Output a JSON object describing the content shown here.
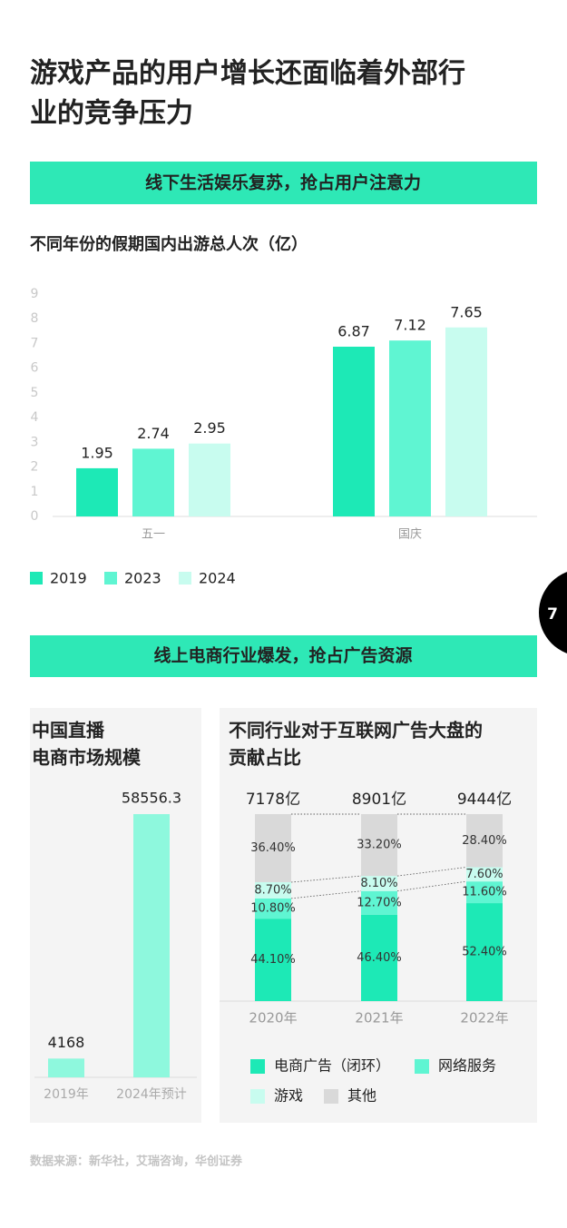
{
  "title": [
    "游戏产品的用户增长还面临着外部行",
    "业的竞争压力"
  ],
  "banners": [
    "线下生活娱乐复苏，抢占用户注意力",
    "线上电商行业爆发，抢占广告资源"
  ],
  "page_number": "7",
  "source": "数据来源：新华社，艾瑞咨询，华创证券",
  "chart_data": [
    {
      "type": "bar",
      "title": "不同年份的假期国内出游总人次（亿）",
      "categories": [
        "五一",
        "国庆"
      ],
      "series": [
        {
          "name": "2019",
          "color": "#1de9b6",
          "values": [
            1.95,
            6.87
          ]
        },
        {
          "name": "2023",
          "color": "#5ff5d2",
          "values": [
            2.74,
            7.12
          ]
        },
        {
          "name": "2024",
          "color": "#c8fcef",
          "values": [
            2.95,
            7.65
          ]
        }
      ],
      "ylim": [
        0,
        9
      ],
      "yticks": [
        0,
        1,
        2,
        3,
        4,
        5,
        6,
        7,
        8,
        9
      ],
      "legend": "bottom-left"
    },
    {
      "type": "bar",
      "title": [
        "中国直播",
        "电商市场规模"
      ],
      "categories": [
        "2019年",
        "2024年预计"
      ],
      "values": [
        4168,
        58556.3
      ],
      "color": "#8ef8dd"
    },
    {
      "type": "stacked_bar",
      "title": [
        "不同行业对于互联网广告大盘的",
        "贡献占比"
      ],
      "categories": [
        "2020年",
        "2021年",
        "2022年"
      ],
      "annotations": [
        "7178亿",
        "8901亿",
        "9444亿"
      ],
      "series": [
        {
          "name": "电商广告（闭环）",
          "color": "#1de9b6",
          "values": [
            44.1,
            46.4,
            52.4
          ],
          "value_labels": [
            "44.10%",
            "46.40%",
            "52.40%"
          ]
        },
        {
          "name": "网络服务",
          "color": "#5ff5d2",
          "values": [
            10.8,
            12.7,
            11.6
          ],
          "value_labels": [
            "10.80%",
            "12.70%",
            "11.60%"
          ]
        },
        {
          "name": "游戏",
          "color": "#c8fcef",
          "values": [
            8.7,
            8.1,
            7.6
          ],
          "value_labels": [
            "8.70%",
            "8.10%",
            "7.60%"
          ]
        },
        {
          "name": "其他",
          "color": "#d9d9d9",
          "values": [
            36.4,
            33.2,
            28.4
          ],
          "value_labels": [
            "36.40%",
            "33.20%",
            "28.40%"
          ]
        }
      ],
      "legend": "bottom"
    }
  ]
}
